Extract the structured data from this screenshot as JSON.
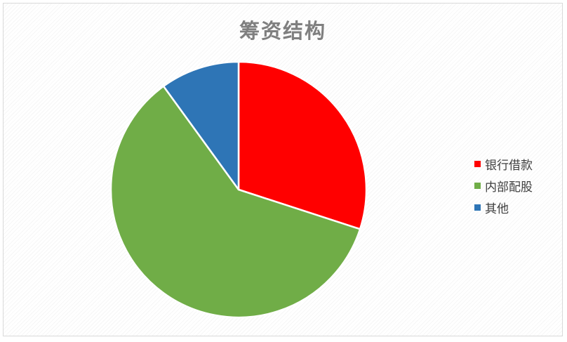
{
  "chart_data": {
    "type": "pie",
    "title": "筹资结构",
    "categories": [
      "银行借款",
      "内部配股",
      "其他"
    ],
    "values": [
      30,
      60,
      10
    ],
    "colors": [
      "#ff0000",
      "#70ad47",
      "#2e75b6"
    ],
    "legend_position": "right"
  }
}
